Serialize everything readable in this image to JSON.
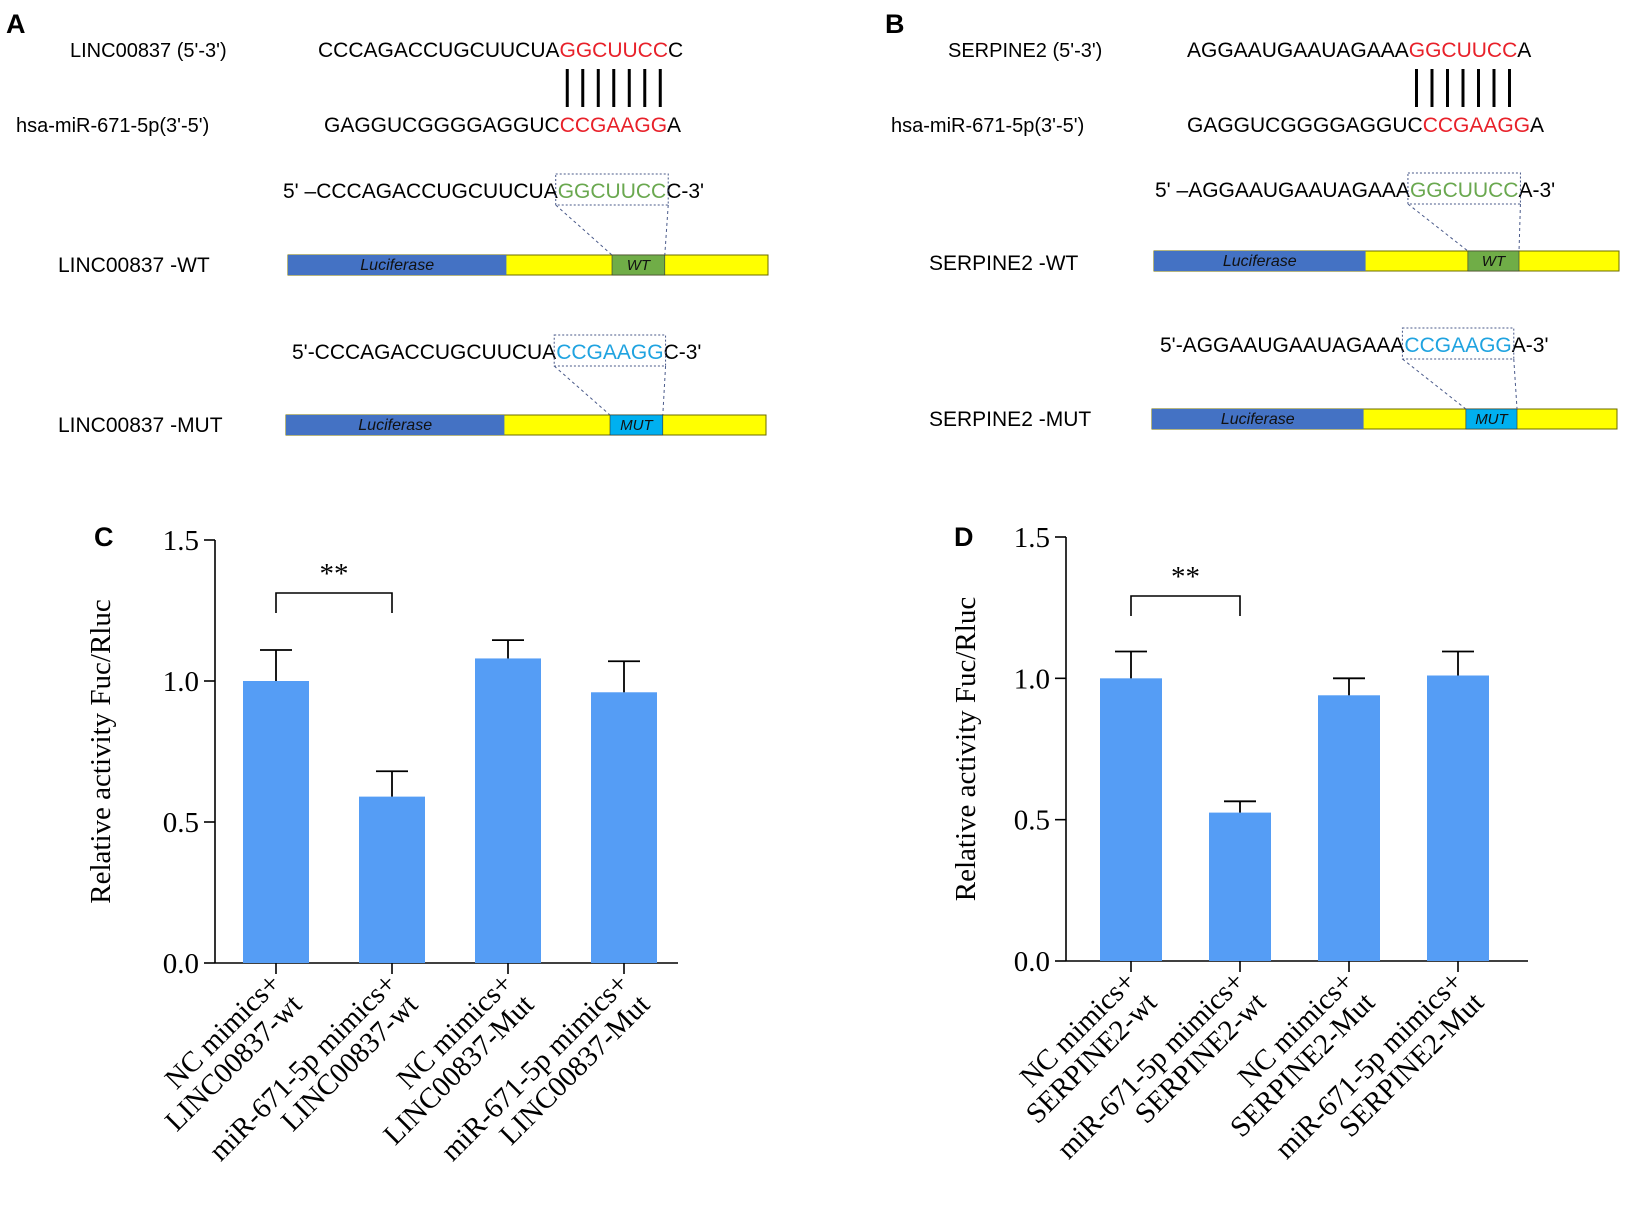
{
  "colors": {
    "match": "#e8212a",
    "wt_text": "#6aa84f",
    "mut_text": "#1fa3e0",
    "luciferase": "#4472c4",
    "utr": "#ffff00",
    "wt_box": "#70ad47",
    "mut_box": "#00b0f0",
    "bar": "#559df5",
    "dotted": "#4a5a8a"
  },
  "panels": {
    "A": {
      "letter": "A",
      "gene_label": "LINC00837 (5'-3')",
      "gene_seq_pre": "CCCAGACCUGCUUCUA",
      "gene_seq_match": "GGCUUCC",
      "gene_seq_post": "C",
      "mirna_label": "hsa-miR-671-5p(3'-5')",
      "mirna_seq_pre": "GAGGUCGGGGAGGUC",
      "mirna_seq_match": "CCGAAGG",
      "mirna_seq_post": "A",
      "wt_seq_pre": "5' –CCCAGACCUGCUUCUA",
      "wt_seq_site": "GGCUUCC",
      "wt_seq_post": "C-3'",
      "wt_label": "LINC00837 -WT",
      "mut_seq_pre": "5'-CCCAGACCUGCUUCUA",
      "mut_seq_site": "CCGAAGG",
      "mut_seq_post": "C-3'",
      "mut_label": "LINC00837 -MUT",
      "luciferase_label": "Luciferase",
      "wt_box_label": "WT",
      "mut_box_label": "MUT"
    },
    "B": {
      "letter": "B",
      "gene_label": "SERPINE2 (5'-3')",
      "gene_seq_pre": "AGGAAUGAAUAGAAA",
      "gene_seq_match": "GGCUUCC",
      "gene_seq_post": "A",
      "mirna_label": "hsa-miR-671-5p(3'-5')",
      "mirna_seq_pre": "GAGGUCGGGGAGGUC",
      "mirna_seq_match": "CCGAAGG",
      "mirna_seq_post": "A",
      "wt_seq_pre": "5' –AGGAAUGAAUAGAAA",
      "wt_seq_site": "GGCUUCC",
      "wt_seq_post": "A-3'",
      "wt_label": "SERPINE2 -WT",
      "mut_seq_pre": "5'-AGGAAUGAAUAGAAA",
      "mut_seq_site": "CCGAAGG",
      "mut_seq_post": "A-3'",
      "mut_label": "SERPINE2 -MUT",
      "luciferase_label": "Luciferase",
      "wt_box_label": "WT",
      "mut_box_label": "MUT"
    }
  },
  "chart_data": [
    {
      "panel": "C",
      "type": "bar",
      "ylabel": "Relative activity Fuc/Rluc",
      "ylim": [
        0,
        1.5
      ],
      "yticks": [
        0.0,
        0.5,
        1.0,
        1.5
      ],
      "ytick_labels": [
        "0.0",
        "0.5",
        "1.0",
        "1.5"
      ],
      "categories": [
        [
          "NC mimics+",
          "LINC00837-wt"
        ],
        [
          "miR-671-5p mimics+",
          "LINC00837-wt"
        ],
        [
          "NC mimics+",
          "LINC00837-Mut"
        ],
        [
          "miR-671-5p mimics+",
          "LINC00837-Mut"
        ]
      ],
      "values": [
        1.0,
        0.59,
        1.08,
        0.96
      ],
      "errors": [
        0.11,
        0.09,
        0.065,
        0.11
      ],
      "significance": {
        "from": 0,
        "to": 1,
        "label": "**"
      }
    },
    {
      "panel": "D",
      "type": "bar",
      "ylabel": "Relative activity Fuc/Rluc",
      "ylim": [
        0,
        1.5
      ],
      "yticks": [
        0.0,
        0.5,
        1.0,
        1.5
      ],
      "ytick_labels": [
        "0.0",
        "0.5",
        "1.0",
        "1.5"
      ],
      "categories": [
        [
          "NC mimics+",
          "SERPINE2-wt"
        ],
        [
          "miR-671-5p mimics+",
          "SERPINE2-wt"
        ],
        [
          "NC mimics+",
          "SERPINE2-Mut"
        ],
        [
          "miR-671-5p mimics+",
          "SERPINE2-Mut"
        ]
      ],
      "values": [
        1.0,
        0.525,
        0.94,
        1.01
      ],
      "errors": [
        0.095,
        0.04,
        0.06,
        0.085
      ],
      "significance": {
        "from": 0,
        "to": 1,
        "label": "**"
      }
    }
  ]
}
